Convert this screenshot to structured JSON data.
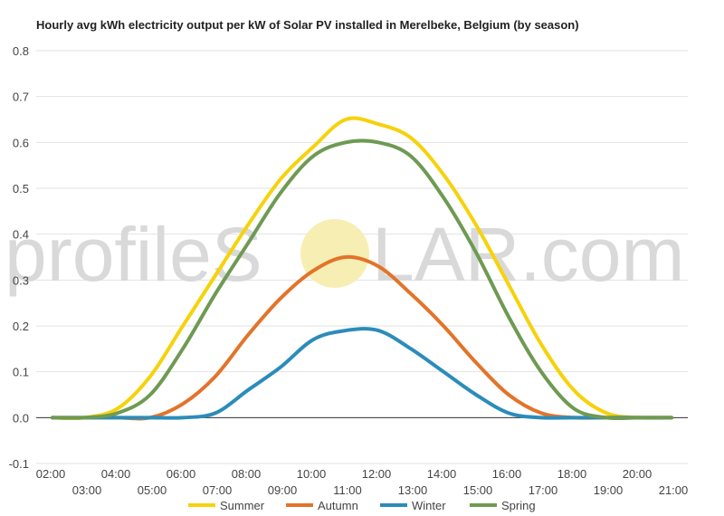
{
  "title": "Hourly avg kWh electricity output per kW of Solar PV installed in Merelbeke, Belgium (by season)",
  "watermark": {
    "left": "profileS",
    "right": "LAR.com",
    "sun_color": "#f7eeb4"
  },
  "chart_data": {
    "type": "line",
    "title": "Hourly avg kWh electricity output per kW of Solar PV installed in Merelbeke, Belgium (by season)",
    "xlabel": "",
    "ylabel": "",
    "x": [
      "02:00",
      "03:00",
      "04:00",
      "05:00",
      "06:00",
      "07:00",
      "08:00",
      "09:00",
      "10:00",
      "11:00",
      "12:00",
      "13:00",
      "14:00",
      "15:00",
      "16:00",
      "17:00",
      "18:00",
      "19:00",
      "20:00",
      "21:00"
    ],
    "x_ticks_row1": [
      "02:00",
      "04:00",
      "06:00",
      "08:00",
      "10:00",
      "12:00",
      "14:00",
      "16:00",
      "18:00",
      "20:00"
    ],
    "x_ticks_row2": [
      "03:00",
      "05:00",
      "07:00",
      "09:00",
      "11:00",
      "13:00",
      "15:00",
      "17:00",
      "19:00",
      "21:00"
    ],
    "ylim": [
      -0.1,
      0.8
    ],
    "yticks": [
      "-0.1",
      "0.0",
      "0.1",
      "0.2",
      "0.3",
      "0.4",
      "0.5",
      "0.6",
      "0.7",
      "0.8"
    ],
    "grid": true,
    "legend_position": "bottom",
    "series": [
      {
        "name": "Summer",
        "color": "#f6d20b",
        "values": [
          0,
          0,
          0.02,
          0.09,
          0.2,
          0.31,
          0.42,
          0.52,
          0.59,
          0.65,
          0.64,
          0.61,
          0.53,
          0.42,
          0.29,
          0.16,
          0.06,
          0.01,
          0,
          0
        ]
      },
      {
        "name": "Autumn",
        "color": "#e2742a",
        "values": [
          0,
          0,
          0,
          0,
          0.03,
          0.09,
          0.18,
          0.26,
          0.32,
          0.35,
          0.33,
          0.27,
          0.2,
          0.12,
          0.05,
          0.01,
          0,
          0,
          0,
          0
        ]
      },
      {
        "name": "Winter",
        "color": "#2b8cba",
        "values": [
          0,
          0,
          0,
          0,
          0,
          0.01,
          0.06,
          0.11,
          0.17,
          0.19,
          0.19,
          0.15,
          0.1,
          0.05,
          0.01,
          0,
          0,
          0,
          0,
          0
        ]
      },
      {
        "name": "Spring",
        "color": "#6e9a52",
        "values": [
          0,
          0,
          0.01,
          0.05,
          0.15,
          0.27,
          0.38,
          0.49,
          0.57,
          0.6,
          0.6,
          0.57,
          0.48,
          0.36,
          0.22,
          0.1,
          0.02,
          0,
          0,
          0
        ]
      }
    ]
  }
}
